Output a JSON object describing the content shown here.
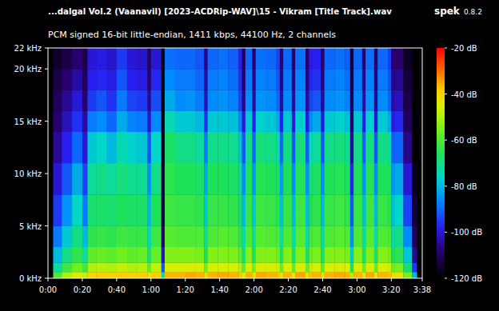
{
  "chart_data": {
    "type": "heatmap",
    "title": "...dalgal Vol.2 (Vaanavil) [2023-ACDRip-WAV]\\15 - Vikram [Title Track].wav",
    "subtitle": "PCM signed 16-bit little-endian, 1411 kbps, 44100 Hz, 2 channels",
    "app_name": "spek",
    "app_version": "0.8.2",
    "xlim": [
      0,
      218
    ],
    "xticks": [
      {
        "value": 0,
        "label": "0:00"
      },
      {
        "value": 20,
        "label": "0:20"
      },
      {
        "value": 40,
        "label": "0:40"
      },
      {
        "value": 60,
        "label": "1:00"
      },
      {
        "value": 80,
        "label": "1:20"
      },
      {
        "value": 100,
        "label": "1:40"
      },
      {
        "value": 120,
        "label": "2:00"
      },
      {
        "value": 140,
        "label": "2:20"
      },
      {
        "value": 160,
        "label": "2:40"
      },
      {
        "value": 180,
        "label": "3:00"
      },
      {
        "value": 200,
        "label": "3:20"
      },
      {
        "value": 218,
        "label": "3:38"
      }
    ],
    "ylim": [
      0,
      22
    ],
    "yticks": [
      {
        "value": 0,
        "label": "0 kHz"
      },
      {
        "value": 5,
        "label": "5 kHz"
      },
      {
        "value": 10,
        "label": "10 kHz"
      },
      {
        "value": 15,
        "label": "15 kHz"
      },
      {
        "value": 20,
        "label": "20 kHz"
      },
      {
        "value": 22,
        "label": "22 kHz"
      }
    ],
    "color_range": [
      -120,
      -20
    ],
    "color_ticks": [
      {
        "value": -20,
        "label": "-20 dB"
      },
      {
        "value": -40,
        "label": "-40 dB"
      },
      {
        "value": -60,
        "label": "-60 dB"
      },
      {
        "value": -80,
        "label": "-80 dB"
      },
      {
        "value": -100,
        "label": "-100 dB"
      },
      {
        "value": -120,
        "label": "-120 dB"
      }
    ],
    "x_bins": [
      0,
      3,
      8,
      14,
      20,
      23,
      28,
      34,
      40,
      46,
      52,
      58,
      60,
      66,
      68,
      74,
      80,
      86,
      91,
      93,
      99,
      105,
      111,
      113,
      115,
      119,
      121,
      127,
      133,
      135,
      137,
      142,
      144,
      150,
      152,
      154,
      159,
      161,
      167,
      173,
      176,
      178,
      183,
      185,
      190,
      192,
      198,
      200,
      202,
      207,
      212,
      215,
      218
    ],
    "y_bins": [
      0,
      0.6,
      1.5,
      3,
      5,
      8,
      11,
      14,
      16,
      18,
      20,
      22
    ],
    "cells": [
      [
        -120,
        -120,
        -120,
        -120,
        -120,
        -120,
        -120,
        -120,
        -120,
        -120,
        -120
      ],
      [
        -60,
        -72,
        -80,
        -88,
        -95,
        -100,
        -105,
        -108,
        -110,
        -112,
        -115
      ],
      [
        -50,
        -62,
        -70,
        -78,
        -85,
        -92,
        -98,
        -102,
        -105,
        -108,
        -112
      ],
      [
        -45,
        -56,
        -64,
        -70,
        -76,
        -82,
        -90,
        -96,
        -100,
        -104,
        -108
      ],
      [
        -48,
        -62,
        -72,
        -80,
        -88,
        -94,
        -100,
        -104,
        -108,
        -110,
        -112
      ],
      [
        -40,
        -50,
        -58,
        -64,
        -68,
        -72,
        -78,
        -88,
        -95,
        -98,
        -100
      ],
      [
        -38,
        -49,
        -57,
        -63,
        -67,
        -70,
        -76,
        -86,
        -92,
        -97,
        -99
      ],
      [
        -39,
        -50,
        -58,
        -64,
        -68,
        -72,
        -80,
        -90,
        -96,
        -99,
        -101
      ],
      [
        -38,
        -48,
        -56,
        -62,
        -66,
        -69,
        -74,
        -82,
        -88,
        -92,
        -95
      ],
      [
        -39,
        -50,
        -58,
        -63,
        -67,
        -71,
        -77,
        -87,
        -94,
        -98,
        -100
      ],
      [
        -38,
        -49,
        -57,
        -63,
        -67,
        -71,
        -78,
        -88,
        -95,
        -99,
        -101
      ],
      [
        -44,
        -58,
        -68,
        -75,
        -80,
        -85,
        -92,
        -100,
        -105,
        -108,
        -110
      ],
      [
        -38,
        -48,
        -57,
        -62,
        -66,
        -70,
        -76,
        -86,
        -93,
        -97,
        -100
      ],
      [
        -72,
        -92,
        -102,
        -108,
        -112,
        -114,
        -116,
        -118,
        -118,
        -118,
        -118
      ],
      [
        -36,
        -46,
        -54,
        -59,
        -62,
        -64,
        -67,
        -74,
        -82,
        -86,
        -89
      ],
      [
        -36,
        -46,
        -54,
        -60,
        -63,
        -66,
        -70,
        -78,
        -86,
        -88,
        -90
      ],
      [
        -35,
        -45,
        -54,
        -60,
        -63,
        -66,
        -70,
        -78,
        -85,
        -88,
        -90
      ],
      [
        -36,
        -46,
        -55,
        -60,
        -64,
        -67,
        -72,
        -80,
        -88,
        -90,
        -92
      ],
      [
        -44,
        -56,
        -66,
        -72,
        -78,
        -82,
        -88,
        -96,
        -102,
        -104,
        -106
      ],
      [
        -36,
        -46,
        -54,
        -60,
        -63,
        -66,
        -70,
        -78,
        -86,
        -88,
        -90
      ],
      [
        -35,
        -46,
        -54,
        -59,
        -63,
        -66,
        -70,
        -78,
        -85,
        -87,
        -89
      ],
      [
        -36,
        -46,
        -55,
        -60,
        -64,
        -67,
        -71,
        -79,
        -87,
        -89,
        -91
      ],
      [
        -38,
        -49,
        -58,
        -64,
        -68,
        -72,
        -78,
        -86,
        -94,
        -96,
        -98
      ],
      [
        -46,
        -58,
        -68,
        -74,
        -80,
        -86,
        -92,
        -100,
        -106,
        -108,
        -110
      ],
      [
        -36,
        -46,
        -54,
        -60,
        -63,
        -66,
        -70,
        -78,
        -86,
        -88,
        -90
      ],
      [
        -44,
        -56,
        -66,
        -72,
        -78,
        -84,
        -90,
        -98,
        -104,
        -106,
        -108
      ],
      [
        -35,
        -45,
        -54,
        -59,
        -62,
        -65,
        -69,
        -77,
        -85,
        -87,
        -89
      ],
      [
        -36,
        -46,
        -54,
        -60,
        -63,
        -66,
        -70,
        -78,
        -86,
        -88,
        -90
      ],
      [
        -37,
        -47,
        -56,
        -61,
        -65,
        -68,
        -73,
        -82,
        -90,
        -92,
        -94
      ],
      [
        -44,
        -57,
        -67,
        -73,
        -79,
        -84,
        -90,
        -98,
        -104,
        -106,
        -108
      ],
      [
        -36,
        -46,
        -54,
        -60,
        -63,
        -66,
        -70,
        -78,
        -86,
        -88,
        -90
      ],
      [
        -45,
        -58,
        -68,
        -74,
        -80,
        -86,
        -92,
        -100,
        -105,
        -107,
        -109
      ],
      [
        -35,
        -45,
        -54,
        -59,
        -62,
        -65,
        -69,
        -77,
        -85,
        -87,
        -89
      ],
      [
        -44,
        -57,
        -67,
        -73,
        -79,
        -85,
        -91,
        -99,
        -104,
        -106,
        -108
      ],
      [
        -37,
        -48,
        -57,
        -62,
        -66,
        -70,
        -76,
        -86,
        -94,
        -97,
        -99
      ],
      [
        -36,
        -46,
        -55,
        -60,
        -64,
        -67,
        -72,
        -82,
        -92,
        -96,
        -98
      ],
      [
        -45,
        -58,
        -68,
        -74,
        -80,
        -86,
        -92,
        -100,
        -105,
        -107,
        -109
      ],
      [
        -36,
        -46,
        -54,
        -60,
        -63,
        -66,
        -70,
        -78,
        -86,
        -88,
        -90
      ],
      [
        -35,
        -45,
        -54,
        -59,
        -62,
        -65,
        -69,
        -77,
        -85,
        -87,
        -89
      ],
      [
        -36,
        -46,
        -55,
        -60,
        -64,
        -67,
        -71,
        -79,
        -87,
        -89,
        -91
      ],
      [
        -50,
        -66,
        -78,
        -86,
        -92,
        -98,
        -104,
        -108,
        -110,
        -112,
        -114
      ],
      [
        -36,
        -46,
        -54,
        -60,
        -63,
        -66,
        -70,
        -78,
        -86,
        -88,
        -90
      ],
      [
        -44,
        -57,
        -67,
        -73,
        -79,
        -85,
        -91,
        -99,
        -104,
        -106,
        -108
      ],
      [
        -35,
        -45,
        -54,
        -59,
        -62,
        -65,
        -69,
        -77,
        -85,
        -87,
        -89
      ],
      [
        -45,
        -58,
        -68,
        -74,
        -80,
        -86,
        -92,
        -100,
        -105,
        -107,
        -109
      ],
      [
        -36,
        -46,
        -54,
        -60,
        -63,
        -66,
        -70,
        -78,
        -86,
        -88,
        -90
      ],
      [
        -37,
        -47,
        -56,
        -61,
        -65,
        -68,
        -74,
        -83,
        -91,
        -93,
        -95
      ],
      [
        -44,
        -57,
        -67,
        -73,
        -79,
        -85,
        -91,
        -99,
        -104,
        -106,
        -108
      ],
      [
        -42,
        -55,
        -64,
        -70,
        -76,
        -82,
        -90,
        -97,
        -102,
        -105,
        -108
      ],
      [
        -55,
        -68,
        -78,
        -86,
        -94,
        -100,
        -106,
        -110,
        -112,
        -114,
        -116
      ],
      [
        -80,
        -95,
        -105,
        -110,
        -114,
        -117,
        -120,
        -120,
        -120,
        -120,
        -120
      ],
      [
        -120,
        -120,
        -120,
        -120,
        -120,
        -120,
        -120,
        -120,
        -120,
        -120,
        -120
      ]
    ]
  }
}
